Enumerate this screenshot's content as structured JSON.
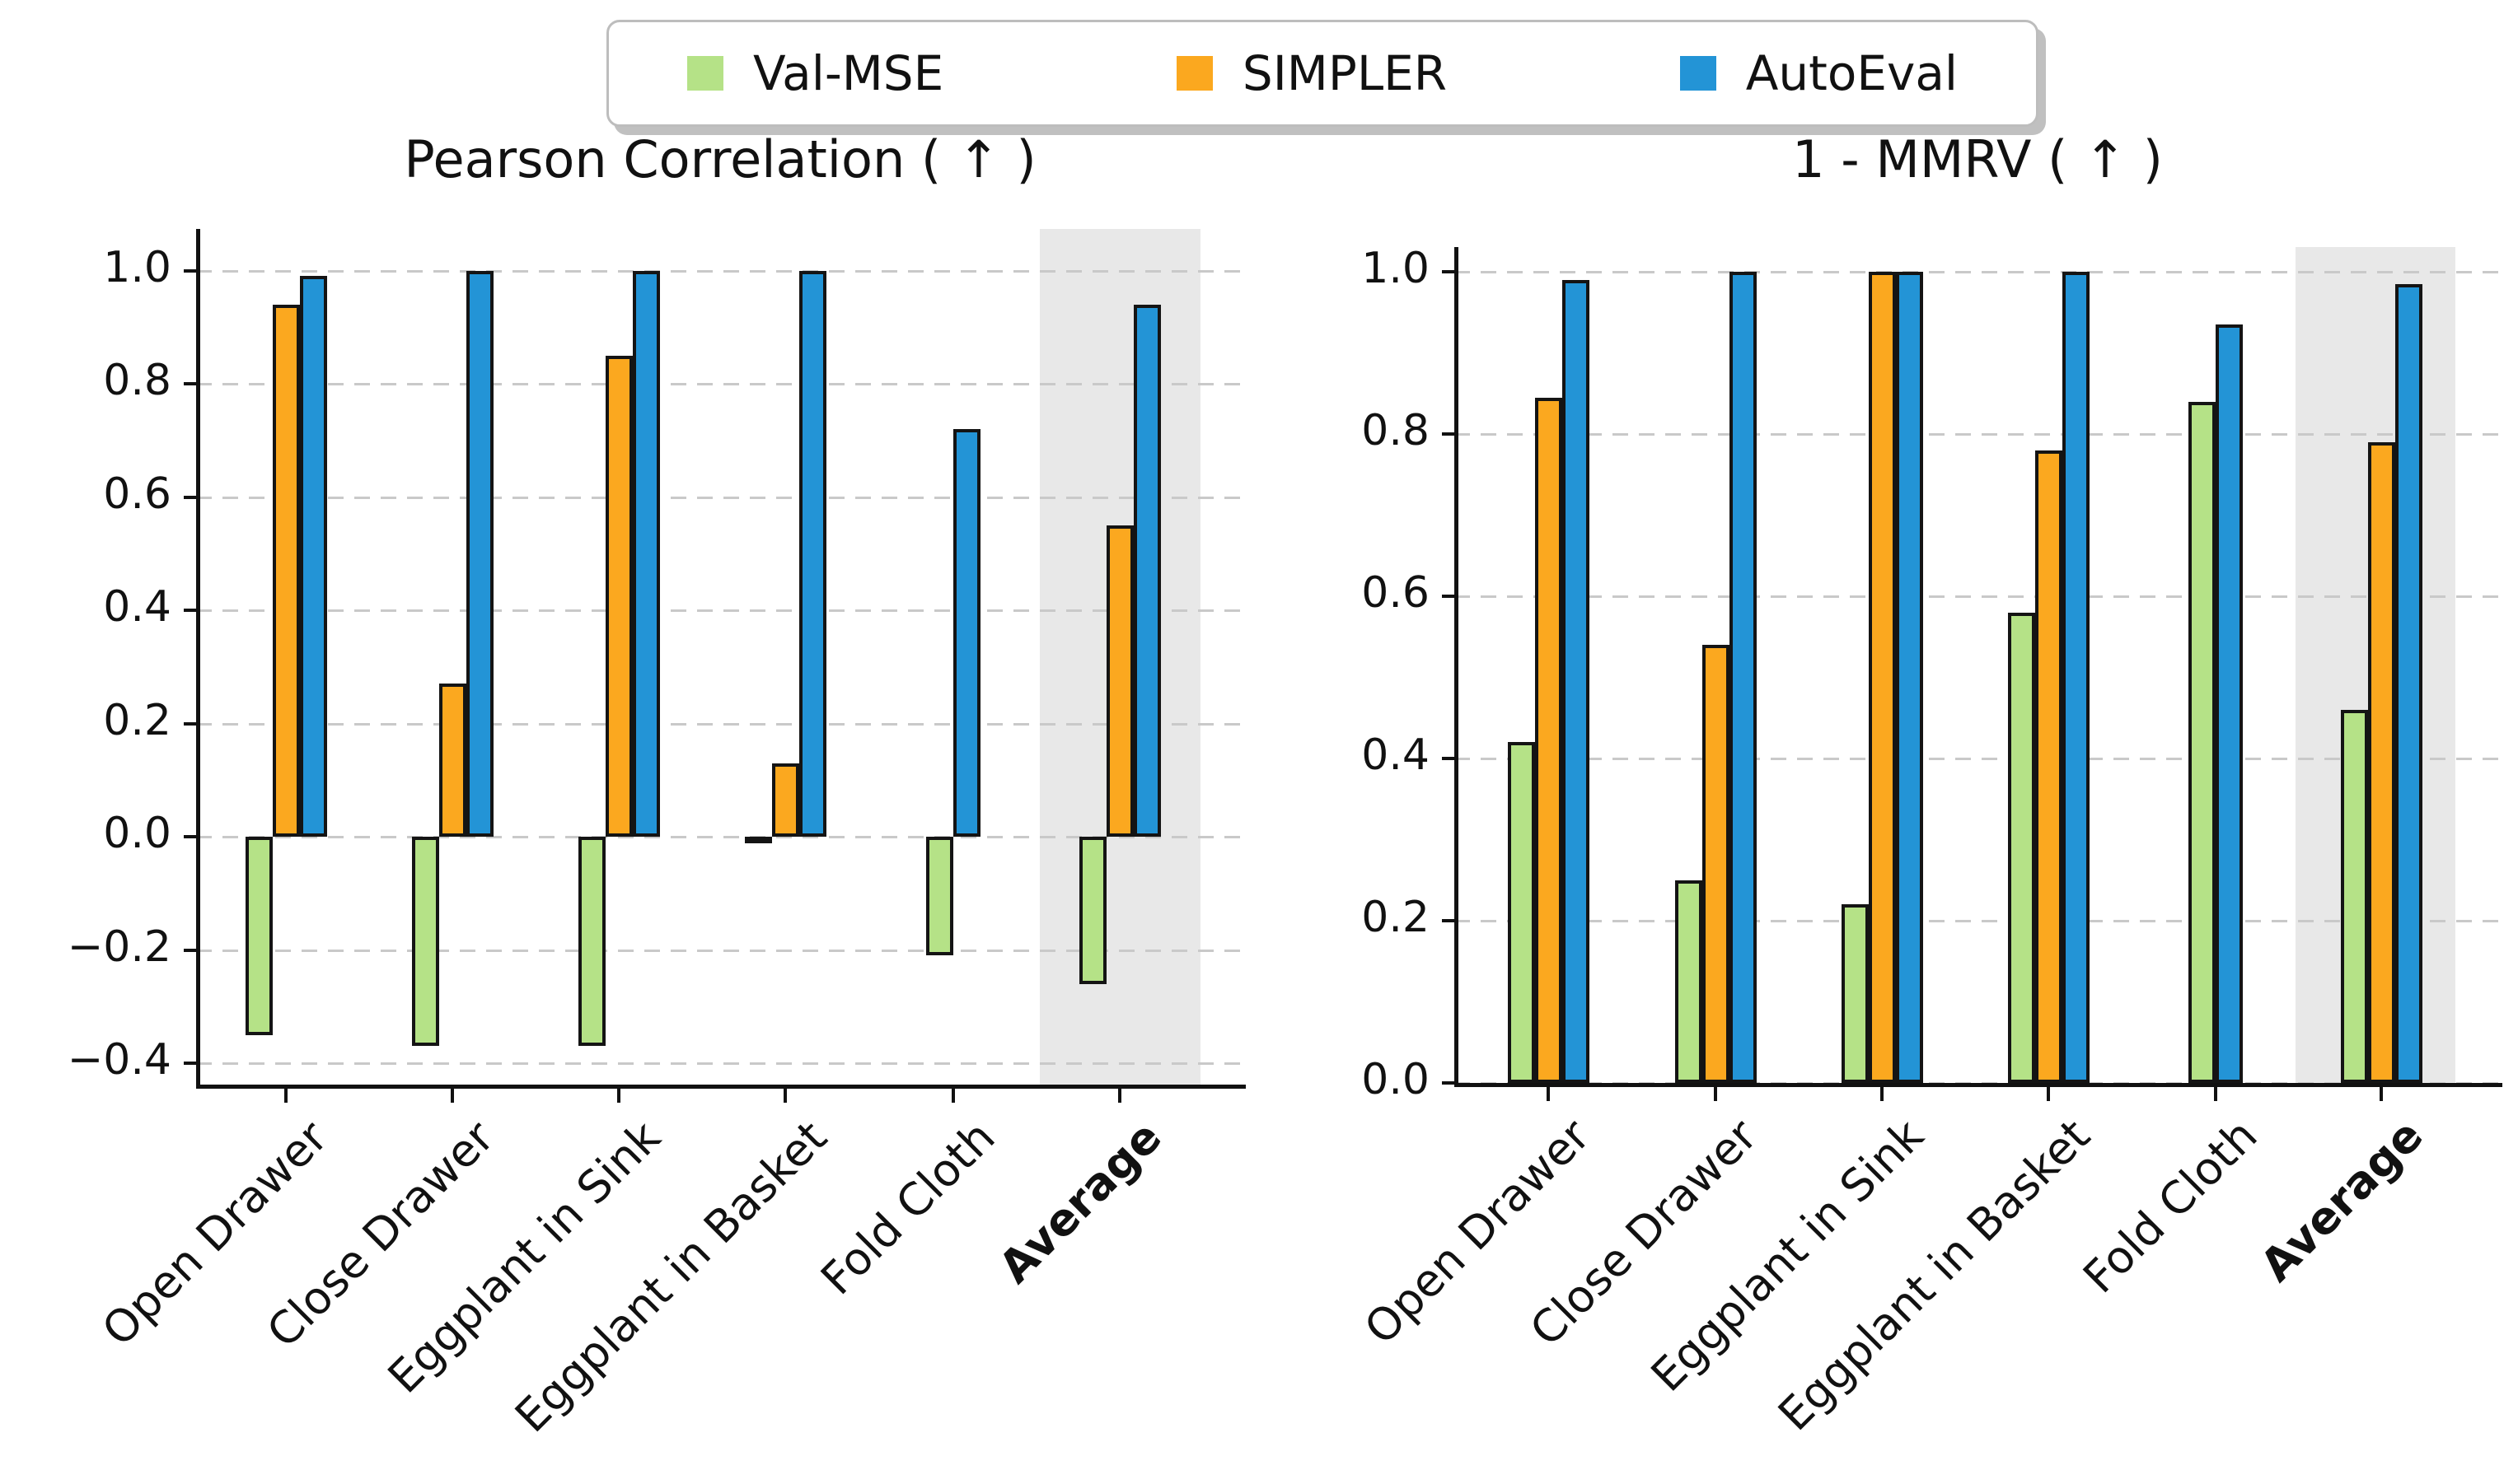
{
  "legend": {
    "items": [
      {
        "label": "Val-MSE",
        "color": "#b5e287"
      },
      {
        "label": "SIMPLER",
        "color": "#fba81f"
      },
      {
        "label": "AutoEval",
        "color": "#2394d6"
      }
    ]
  },
  "categories": [
    {
      "label": "Open Drawer",
      "bold": false
    },
    {
      "label": "Close Drawer",
      "bold": false
    },
    {
      "label": "Eggplant in Sink",
      "bold": false
    },
    {
      "label": "Eggplant in Basket",
      "bold": false
    },
    {
      "label": "Fold Cloth",
      "bold": false
    },
    {
      "label": "Average",
      "bold": true
    }
  ],
  "chart_data": [
    {
      "type": "bar",
      "title": "Pearson Correlation ( ↑ )",
      "categories": [
        "Open Drawer",
        "Close Drawer",
        "Eggplant in Sink",
        "Eggplant in Basket",
        "Fold Cloth",
        "Average"
      ],
      "series": [
        {
          "name": "Val-MSE",
          "values": [
            -0.35,
            -0.37,
            -0.37,
            -0.01,
            -0.21,
            -0.26
          ]
        },
        {
          "name": "SIMPLER",
          "values": [
            0.94,
            0.27,
            0.85,
            0.13,
            null,
            0.55
          ]
        },
        {
          "name": "AutoEval",
          "values": [
            0.99,
            1.0,
            1.0,
            1.0,
            0.72,
            0.94
          ]
        }
      ],
      "ylim": [
        -0.44,
        1.07
      ],
      "yticks": [
        "1.0",
        "0.8",
        "0.6",
        "0.4",
        "0.2",
        "0.0",
        "−0.2",
        "−0.4"
      ],
      "ytick_values": [
        1.0,
        0.8,
        0.6,
        0.4,
        0.2,
        0.0,
        -0.2,
        -0.4
      ],
      "grid": "dashed horizontal",
      "legend_position": "top",
      "highlighted_category": "Average"
    },
    {
      "type": "bar",
      "title": "1 - MMRV ( ↑ )",
      "categories": [
        "Open Drawer",
        "Close Drawer",
        "Eggplant in Sink",
        "Eggplant in Basket",
        "Fold Cloth",
        "Average"
      ],
      "series": [
        {
          "name": "Val-MSE",
          "values": [
            0.42,
            0.25,
            0.22,
            0.58,
            0.84,
            0.46
          ]
        },
        {
          "name": "SIMPLER",
          "values": [
            0.845,
            0.54,
            1.0,
            0.78,
            null,
            0.79
          ]
        },
        {
          "name": "AutoEval",
          "values": [
            0.99,
            1.0,
            1.0,
            1.0,
            0.935,
            0.985
          ]
        }
      ],
      "ylim": [
        0.0,
        1.03
      ],
      "yticks": [
        "1.0",
        "0.8",
        "0.6",
        "0.4",
        "0.2",
        "0.0"
      ],
      "ytick_values": [
        1.0,
        0.8,
        0.6,
        0.4,
        0.2,
        0.0
      ],
      "grid": "dashed horizontal",
      "legend_position": "top",
      "highlighted_category": "Average"
    }
  ]
}
